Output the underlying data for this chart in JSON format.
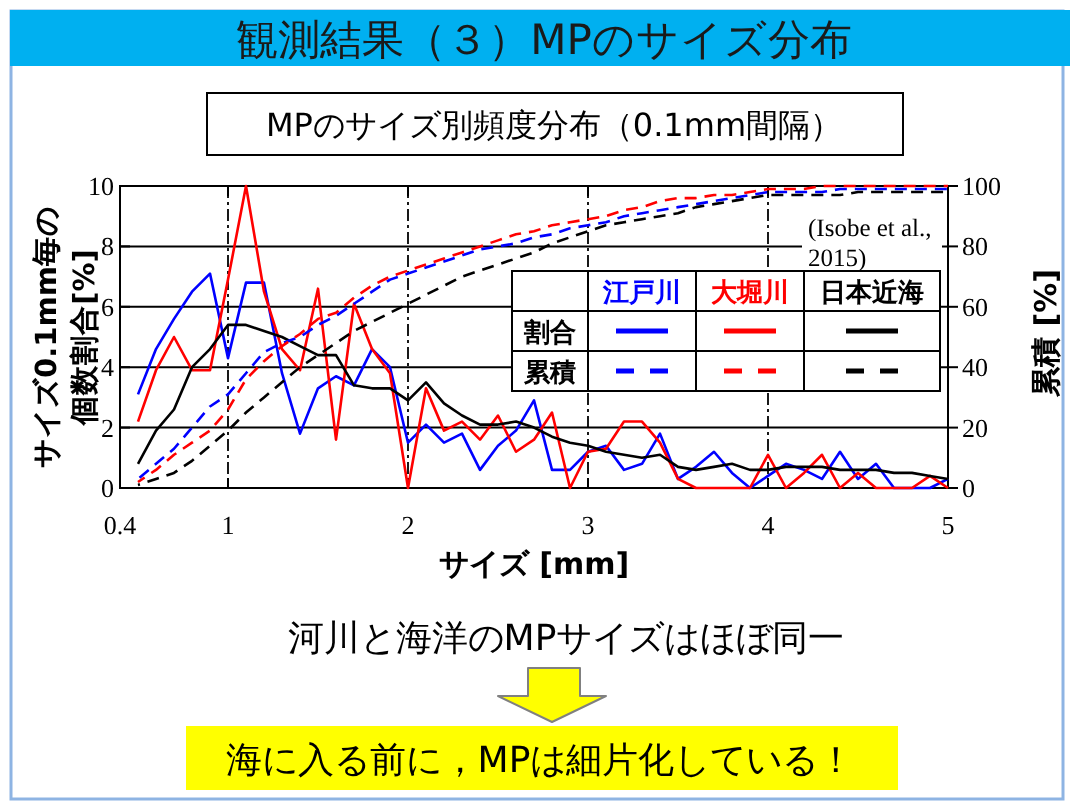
{
  "chart_data": {
    "type": "line",
    "title": "観測結果（３）MPのサイズ分布",
    "subtitle": "MPのサイズ別頻度分布（0.1mm間隔）",
    "xlabel": "サイズ [mm]",
    "ylabel": "サイズ0.1mm毎の個数割合[%]",
    "y2label": "累積 [%]",
    "annotations": [
      "(Isobe et al.,\n2015)",
      "割合",
      "累積",
      "河川と海洋のMPサイズはほぼ同一",
      "海に入る前に，MPは細片化している！"
    ],
    "x": [
      0.5,
      0.6,
      0.7,
      0.8,
      0.9,
      1,
      1.1,
      1.2,
      1.3,
      1.4,
      1.5,
      1.6,
      1.7,
      1.8,
      1.9,
      2,
      2.1,
      2.2,
      2.3,
      2.4,
      2.5,
      2.6,
      2.7,
      2.8,
      2.9,
      3,
      3.1,
      3.2,
      3.3,
      3.4,
      3.5,
      3.6,
      3.7,
      3.8,
      3.9,
      4,
      4.1,
      4.2,
      4.3,
      4.4,
      4.5,
      4.6,
      4.7,
      4.8,
      4.9,
      5
    ],
    "series": [
      {
        "name": "江戸川",
        "color": "#0000ff",
        "line_style": "solid",
        "values": [
          3.1,
          4.6,
          5.6,
          6.5,
          7.1,
          4.3,
          6.8,
          6.8,
          3.8,
          1.8,
          3.3,
          3.7,
          3.4,
          4.6,
          4.0,
          1.5,
          2.1,
          1.5,
          1.8,
          0.6,
          1.4,
          1.9,
          2.9,
          0.6,
          0.6,
          1.2,
          1.4,
          0.6,
          0.8,
          1.8,
          0.3,
          0.7,
          1.2,
          0.5,
          0,
          0.4,
          0.8,
          0.6,
          0.3,
          1.2,
          0.3,
          0.8,
          0,
          0,
          0,
          0.3
        ]
      },
      {
        "name": "大堀川",
        "color": "#ff0000",
        "line_style": "solid",
        "values": [
          2.2,
          3.9,
          5.0,
          3.9,
          3.9,
          6.9,
          10,
          6.5,
          4.6,
          3.9,
          6.6,
          1.6,
          6.1,
          4.6,
          3.8,
          0,
          3.3,
          1.9,
          2.2,
          1.6,
          2.4,
          1.2,
          1.6,
          2.5,
          0,
          1.2,
          1.3,
          2.2,
          2.2,
          1.5,
          0.3,
          0,
          0,
          0,
          0,
          1.1,
          0,
          0.5,
          1.1,
          0,
          0.5,
          0,
          0,
          0,
          0.4,
          0
        ]
      },
      {
        "name": "日本近海",
        "color": "#000000",
        "line_style": "solid",
        "values": [
          0.8,
          1.9,
          2.6,
          4.0,
          4.6,
          5.4,
          5.4,
          5.2,
          5.0,
          4.7,
          4.4,
          4.4,
          3.4,
          3.3,
          3.3,
          2.9,
          3.5,
          2.8,
          2.4,
          2.1,
          2.1,
          2.2,
          2.0,
          1.7,
          1.5,
          1.4,
          1.2,
          1.1,
          1.0,
          1.1,
          0.7,
          0.6,
          0.7,
          0.8,
          0.6,
          0.6,
          0.7,
          0.7,
          0.7,
          0.6,
          0.6,
          0.6,
          0.5,
          0.5,
          0.4,
          0.3
        ]
      },
      {
        "color": "#0000ff",
        "line_style": "dashed",
        "axis": "y2",
        "values": [
          3,
          8,
          13,
          20,
          27,
          31,
          38,
          45,
          48,
          50,
          54,
          57,
          61,
          65,
          69,
          71,
          73,
          75,
          77,
          79,
          80,
          81,
          83,
          84,
          86,
          87,
          88,
          90,
          91,
          92,
          93,
          94,
          95,
          96,
          97,
          98,
          98,
          98,
          98,
          99,
          99,
          99,
          99,
          99,
          99,
          99
        ]
      },
      {
        "color": "#ff0000",
        "line_style": "dashed",
        "axis": "y2",
        "values": [
          2,
          6,
          11,
          15,
          19,
          26,
          36,
          42,
          47,
          51,
          56,
          58,
          63,
          67,
          70,
          72,
          74,
          76,
          78,
          80,
          82,
          84,
          85,
          87,
          88,
          89,
          90,
          92,
          93,
          95,
          96,
          96,
          97,
          97,
          98,
          99,
          99,
          99,
          100,
          100,
          100,
          100,
          100,
          100,
          100,
          100
        ]
      },
      {
        "color": "#000000",
        "line_style": "dashed",
        "axis": "y2",
        "values": [
          1,
          3,
          5,
          9,
          14,
          19,
          25,
          30,
          35,
          40,
          44,
          48,
          52,
          55,
          58,
          61,
          64,
          67,
          70,
          72,
          74,
          76,
          78,
          81,
          83,
          85,
          87,
          88,
          89,
          90,
          91,
          93,
          94,
          95,
          96,
          97,
          97,
          97,
          97,
          97,
          98,
          98,
          98,
          98,
          98,
          98
        ]
      }
    ],
    "xlim": [
      0.4,
      5
    ],
    "xticks": [
      0.4,
      1,
      2,
      3,
      4,
      5
    ],
    "ylim": [
      0,
      10
    ],
    "yticks": [
      0,
      2,
      4,
      6,
      8,
      10
    ],
    "y2lim": [
      0,
      100
    ],
    "y2ticks": [
      0,
      20,
      40,
      60,
      80,
      100
    ],
    "grid": true,
    "legend": "right"
  }
}
